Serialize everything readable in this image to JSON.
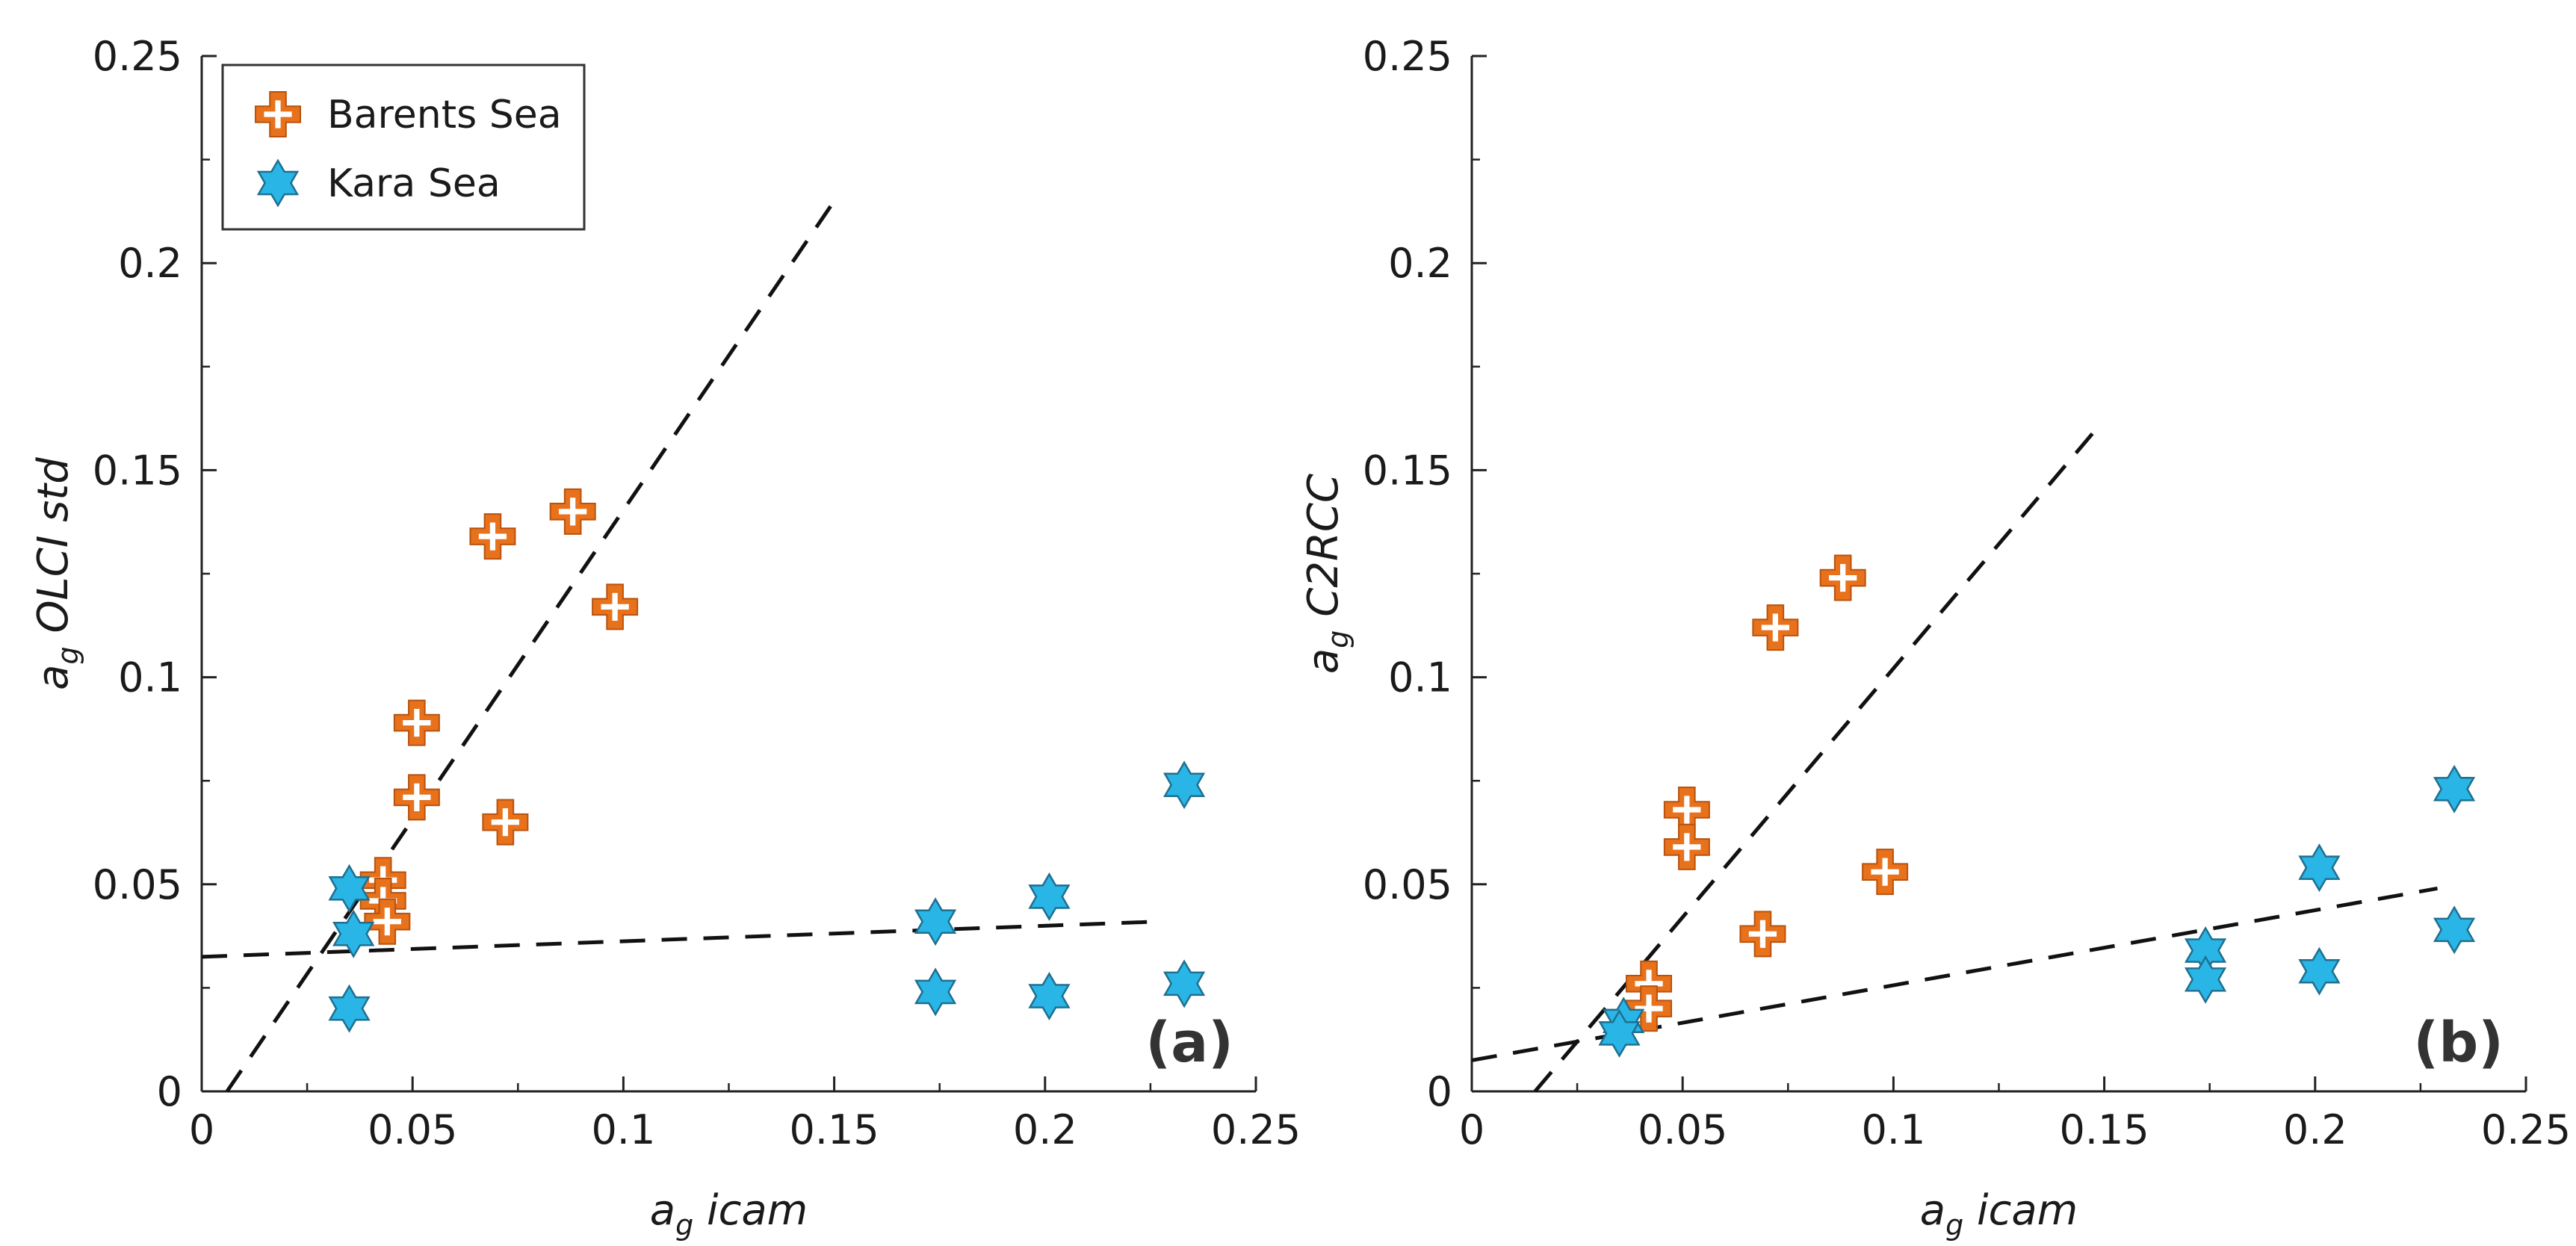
{
  "chart_data": [
    {
      "type": "scatter",
      "panel_label": "(a)",
      "xlabel": {
        "main": "a",
        "sub": "g",
        "rest": " icam"
      },
      "ylabel": {
        "main": "a",
        "sub": "g",
        "rest": " OLCI std"
      },
      "xlim": [
        0,
        0.25
      ],
      "ylim": [
        0,
        0.25
      ],
      "xticks": [
        "0",
        "0.05",
        "0.1",
        "0.15",
        "0.2",
        "0.25"
      ],
      "yticks": [
        "0",
        "0.05",
        "0.1",
        "0.15",
        "0.2",
        "0.25"
      ],
      "legend": {
        "position": "top-left",
        "entries": [
          {
            "label": "Barents Sea",
            "marker": "plus",
            "color": "#E8711C"
          },
          {
            "label": "Kara Sea",
            "marker": "star",
            "color": "#29B6E6"
          }
        ]
      },
      "series": [
        {
          "name": "Barents Sea",
          "marker": "plus",
          "color": "#E8711C",
          "points": [
            [
              0.043,
              0.051
            ],
            [
              0.043,
              0.046
            ],
            [
              0.044,
              0.041
            ],
            [
              0.051,
              0.089
            ],
            [
              0.051,
              0.071
            ],
            [
              0.069,
              0.134
            ],
            [
              0.072,
              0.065
            ],
            [
              0.088,
              0.14
            ],
            [
              0.098,
              0.117
            ]
          ]
        },
        {
          "name": "Kara Sea",
          "marker": "star",
          "color": "#29B6E6",
          "points": [
            [
              0.035,
              0.049
            ],
            [
              0.036,
              0.038
            ],
            [
              0.035,
              0.02
            ],
            [
              0.174,
              0.041
            ],
            [
              0.174,
              0.024
            ],
            [
              0.201,
              0.047
            ],
            [
              0.201,
              0.023
            ],
            [
              0.233,
              0.074
            ],
            [
              0.233,
              0.026
            ]
          ]
        }
      ],
      "fit_lines": [
        {
          "name": "Barents Sea fit",
          "x": [
            0.006,
            0.15
          ],
          "y": [
            0.0,
            0.215
          ]
        },
        {
          "name": "Kara Sea fit",
          "x": [
            0.0,
            0.227
          ],
          "y": [
            0.0325,
            0.041
          ]
        }
      ]
    },
    {
      "type": "scatter",
      "panel_label": "(b)",
      "xlabel": {
        "main": "a",
        "sub": "g",
        "rest": " icam"
      },
      "ylabel": {
        "main": "a",
        "sub": "g",
        "rest": " C2RCC"
      },
      "xlim": [
        0,
        0.25
      ],
      "ylim": [
        0,
        0.25
      ],
      "xticks": [
        "0",
        "0.05",
        "0.1",
        "0.15",
        "0.2",
        "0.25"
      ],
      "yticks": [
        "0",
        "0.05",
        "0.1",
        "0.15",
        "0.2",
        "0.25"
      ],
      "series": [
        {
          "name": "Barents Sea",
          "marker": "plus",
          "color": "#E8711C",
          "points": [
            [
              0.042,
              0.026
            ],
            [
              0.042,
              0.02
            ],
            [
              0.051,
              0.068
            ],
            [
              0.051,
              0.059
            ],
            [
              0.069,
              0.038
            ],
            [
              0.072,
              0.112
            ],
            [
              0.088,
              0.124
            ],
            [
              0.098,
              0.053
            ]
          ]
        },
        {
          "name": "Kara Sea",
          "marker": "star",
          "color": "#29B6E6",
          "points": [
            [
              0.036,
              0.017
            ],
            [
              0.035,
              0.014
            ],
            [
              0.174,
              0.034
            ],
            [
              0.174,
              0.027
            ],
            [
              0.201,
              0.054
            ],
            [
              0.201,
              0.029
            ],
            [
              0.233,
              0.073
            ],
            [
              0.233,
              0.039
            ]
          ]
        }
      ],
      "fit_lines": [
        {
          "name": "Barents Sea fit",
          "x": [
            0.015,
            0.149
          ],
          "y": [
            0.0,
            0.161
          ]
        },
        {
          "name": "Kara Sea fit",
          "x": [
            0.0,
            0.229
          ],
          "y": [
            0.0075,
            0.049
          ]
        }
      ]
    }
  ]
}
